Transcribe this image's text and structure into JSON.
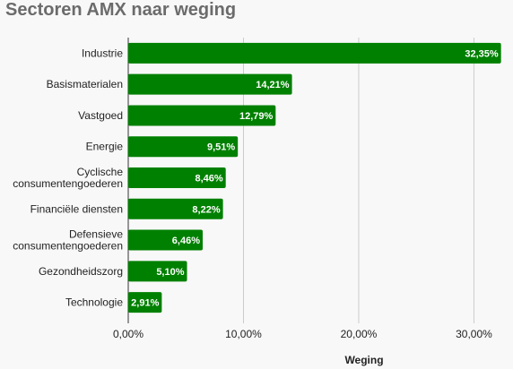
{
  "title": "Sectoren AMX naar weging",
  "colors": {
    "bar": "#008000",
    "grid": "#cccccc",
    "axis": "#333333",
    "background": "#f8f8f8"
  },
  "chart_data": {
    "type": "bar",
    "orientation": "horizontal",
    "categories": [
      "Industrie",
      "Basismaterialen",
      "Vastgoed",
      "Energie",
      "Cyclische consumentengoederen",
      "Financiële diensten",
      "Defensieve consumentengoederen",
      "Gezondheidszorg",
      "Technologie"
    ],
    "category_lines": [
      [
        "Industrie"
      ],
      [
        "Basismaterialen"
      ],
      [
        "Vastgoed"
      ],
      [
        "Energie"
      ],
      [
        "Cyclische",
        "consumentengoederen"
      ],
      [
        "Financiële diensten"
      ],
      [
        "Defensieve",
        "consumentengoederen"
      ],
      [
        "Gezondheidszorg"
      ],
      [
        "Technologie"
      ]
    ],
    "values": [
      32.35,
      14.21,
      12.79,
      9.51,
      8.46,
      8.22,
      6.46,
      5.1,
      2.91
    ],
    "value_labels": [
      "32,35%",
      "14,21%",
      "12,79%",
      "9,51%",
      "8,46%",
      "8,22%",
      "6,46%",
      "5,10%",
      "2,91%"
    ],
    "xlim": [
      0,
      33
    ],
    "x_ticks": [
      0,
      10,
      20,
      30
    ],
    "x_tick_labels": [
      "0,00%",
      "10,00%",
      "20,00%",
      "30,00%"
    ],
    "xlabel": "Weging",
    "ylabel": "",
    "grid": true
  }
}
